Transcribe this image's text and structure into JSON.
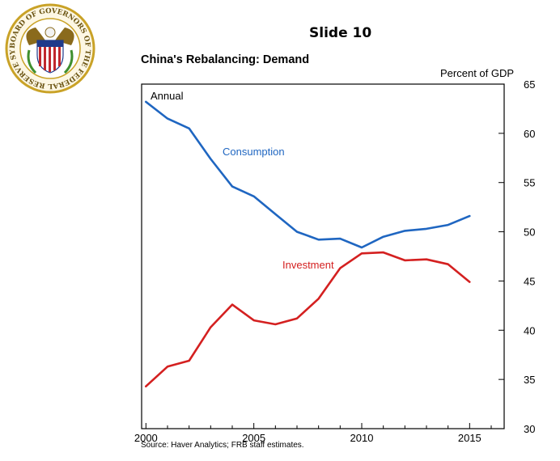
{
  "slide": {
    "label": "Slide 10"
  },
  "seal": {
    "text": "BOARD OF GOVERNORS OF THE FEDERAL RESERVE SYSTEM",
    "colors": {
      "gold": "#c9a227",
      "red": "#c0272d",
      "blue": "#1f3a8a",
      "green": "#3f8f2f"
    }
  },
  "chart": {
    "unit_label": "Percent of GDP",
    "source": "Source: Haver Analytics; FRB staff estimates."
  },
  "chart_data": {
    "type": "line",
    "title": "China's Rebalancing: Demand",
    "subtitle": "Annual",
    "xlabel": "",
    "ylabel": "Percent of GDP",
    "xlim": [
      1999.8,
      2016.6
    ],
    "ylim": [
      30,
      65
    ],
    "x_ticks": [
      2000,
      2005,
      2010,
      2015
    ],
    "y_ticks": [
      30,
      35,
      40,
      45,
      50,
      55,
      60,
      65
    ],
    "y_axis_side": "right",
    "grid": false,
    "x": [
      2000,
      2001,
      2002,
      2003,
      2004,
      2005,
      2006,
      2007,
      2008,
      2009,
      2010,
      2011,
      2012,
      2013,
      2014,
      2015
    ],
    "series": [
      {
        "name": "Consumption",
        "color": "#1f66c1",
        "values": [
          63.2,
          61.5,
          60.5,
          57.4,
          54.6,
          53.6,
          51.8,
          50.0,
          49.2,
          49.3,
          48.4,
          49.5,
          50.1,
          50.3,
          50.7,
          51.6
        ]
      },
      {
        "name": "Investment",
        "color": "#d42020",
        "values": [
          34.3,
          36.3,
          36.9,
          40.3,
          42.6,
          41.0,
          40.6,
          41.2,
          43.2,
          46.3,
          47.8,
          47.9,
          47.1,
          47.2,
          46.7,
          44.9
        ]
      }
    ]
  }
}
